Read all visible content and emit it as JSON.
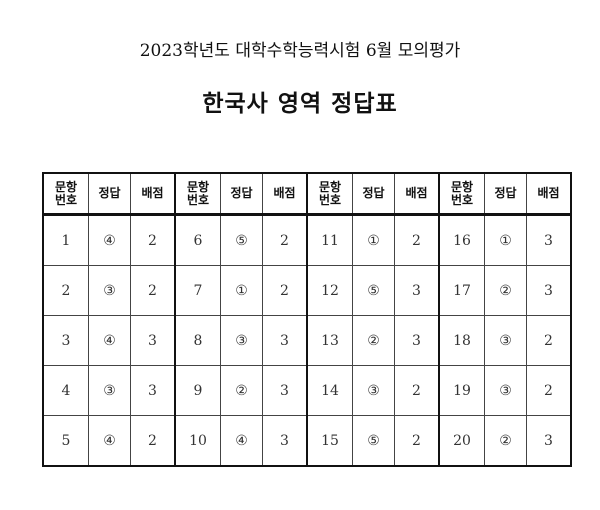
{
  "title": "2023학년도 대학수학능력시험 6월 모의평가",
  "subtitle": "한국사 영역 정답표",
  "table": {
    "headers": [
      "문항\n번호",
      "정답",
      "배점"
    ],
    "groups": [
      [
        [
          "1",
          "④",
          "2"
        ],
        [
          "2",
          "③",
          "2"
        ],
        [
          "3",
          "④",
          "3"
        ],
        [
          "4",
          "③",
          "3"
        ],
        [
          "5",
          "④",
          "2"
        ]
      ],
      [
        [
          "6",
          "⑤",
          "2"
        ],
        [
          "7",
          "①",
          "2"
        ],
        [
          "8",
          "③",
          "3"
        ],
        [
          "9",
          "②",
          "3"
        ],
        [
          "10",
          "④",
          "3"
        ]
      ],
      [
        [
          "11",
          "①",
          "2"
        ],
        [
          "12",
          "⑤",
          "3"
        ],
        [
          "13",
          "②",
          "3"
        ],
        [
          "14",
          "③",
          "2"
        ],
        [
          "15",
          "⑤",
          "2"
        ]
      ],
      [
        [
          "16",
          "①",
          "3"
        ],
        [
          "17",
          "②",
          "3"
        ],
        [
          "18",
          "③",
          "2"
        ],
        [
          "19",
          "③",
          "2"
        ],
        [
          "20",
          "②",
          "3"
        ]
      ]
    ]
  }
}
